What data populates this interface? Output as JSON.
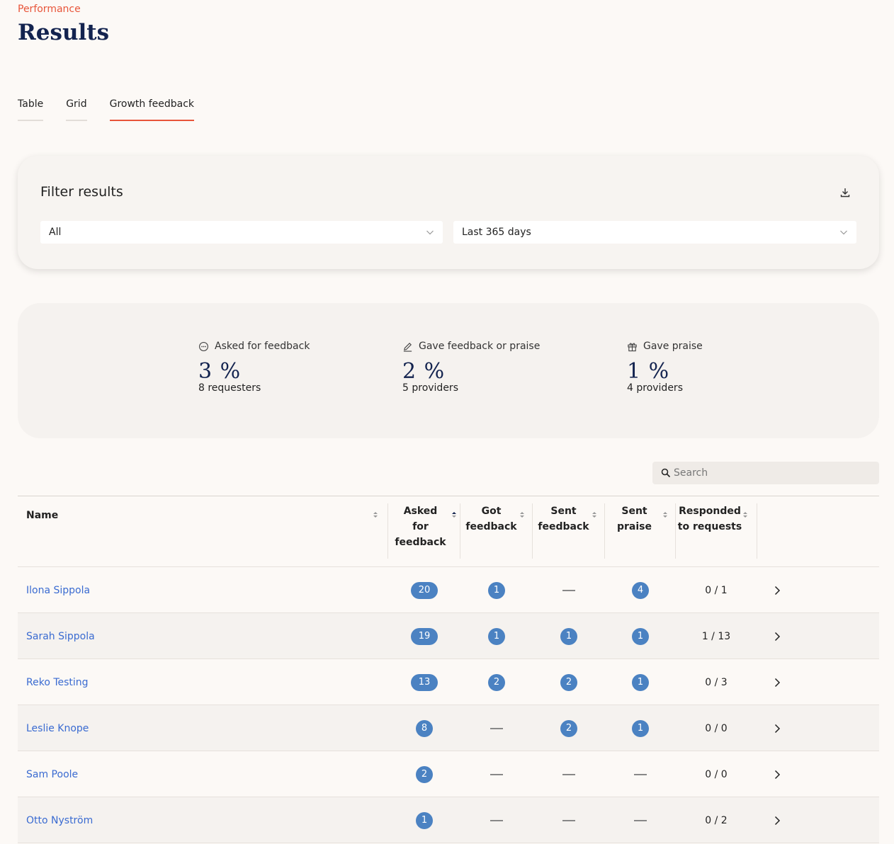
{
  "header": {
    "eyebrow": "Performance",
    "title": "Results"
  },
  "tabs": [
    {
      "label": "Table",
      "active": false
    },
    {
      "label": "Grid",
      "active": false
    },
    {
      "label": "Growth feedback",
      "active": true
    }
  ],
  "filter": {
    "title": "Filter results",
    "group_select": "All",
    "period_select": "Last 365 days"
  },
  "stats": [
    {
      "icon": "chat-bubble-icon",
      "label": "Asked for feedback",
      "value": "3 %",
      "sub": "8 requesters"
    },
    {
      "icon": "pencil-icon",
      "label": "Gave feedback or praise",
      "value": "2 %",
      "sub": "5 providers"
    },
    {
      "icon": "gift-icon",
      "label": "Gave praise",
      "value": "1 %",
      "sub": "4 providers"
    }
  ],
  "search": {
    "placeholder": "Search"
  },
  "table": {
    "headers": {
      "name": "Name",
      "asked_l1": "Asked",
      "asked_l2": "for",
      "asked_l3": "feedback",
      "got_l1": "Got",
      "got_l2": "feedback",
      "sent_fb_l1": "Sent",
      "sent_fb_l2": "feedback",
      "sent_pr_l1": "Sent",
      "sent_pr_l2": "praise",
      "resp_l1": "Responded",
      "resp_l2": "to requests"
    },
    "rows": [
      {
        "name": "Ilona Sippola",
        "asked": "20",
        "got": "1",
        "sent_feedback": "",
        "sent_praise": "4",
        "responded": "0 / 1"
      },
      {
        "name": "Sarah Sippola",
        "asked": "19",
        "got": "1",
        "sent_feedback": "1",
        "sent_praise": "1",
        "responded": "1 / 13"
      },
      {
        "name": "Reko Testing",
        "asked": "13",
        "got": "2",
        "sent_feedback": "2",
        "sent_praise": "1",
        "responded": "0 / 3"
      },
      {
        "name": "Leslie Knope",
        "asked": "8",
        "got": "",
        "sent_feedback": "2",
        "sent_praise": "1",
        "responded": "0 / 0"
      },
      {
        "name": "Sam Poole",
        "asked": "2",
        "got": "",
        "sent_feedback": "",
        "sent_praise": "",
        "responded": "0 / 0"
      },
      {
        "name": "Otto Nyström",
        "asked": "1",
        "got": "",
        "sent_feedback": "",
        "sent_praise": "",
        "responded": "0 / 2"
      }
    ]
  },
  "colors": {
    "accent": "#e8553a",
    "title": "#13234f",
    "link": "#3a6bd1",
    "badge": "#4b82c2"
  }
}
